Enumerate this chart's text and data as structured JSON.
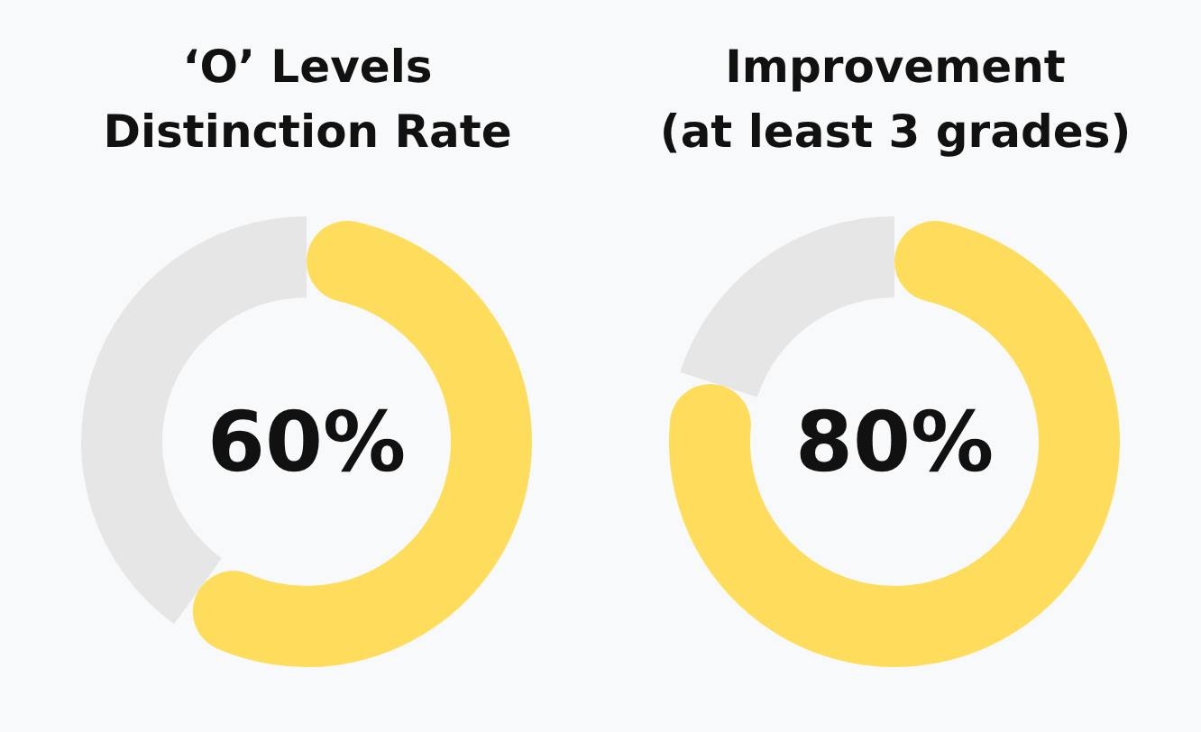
{
  "chart_data": [
    {
      "type": "donut",
      "title": "‘O’ Levels\nDistinction Rate",
      "categories": [
        null,
        null
      ],
      "values": [
        60,
        40
      ],
      "colors": [
        "#ffdd5c",
        "#e6e6e6"
      ],
      "value_labels": [
        "60%",
        null
      ]
    },
    {
      "type": "donut",
      "title": "Improvement\n(at least 3 grades)",
      "categories": [
        null,
        null
      ],
      "values": [
        80,
        20
      ],
      "colors": [
        "#ffdd5c",
        "#e6e6e6"
      ],
      "value_labels": [
        "80%",
        null
      ]
    }
  ]
}
